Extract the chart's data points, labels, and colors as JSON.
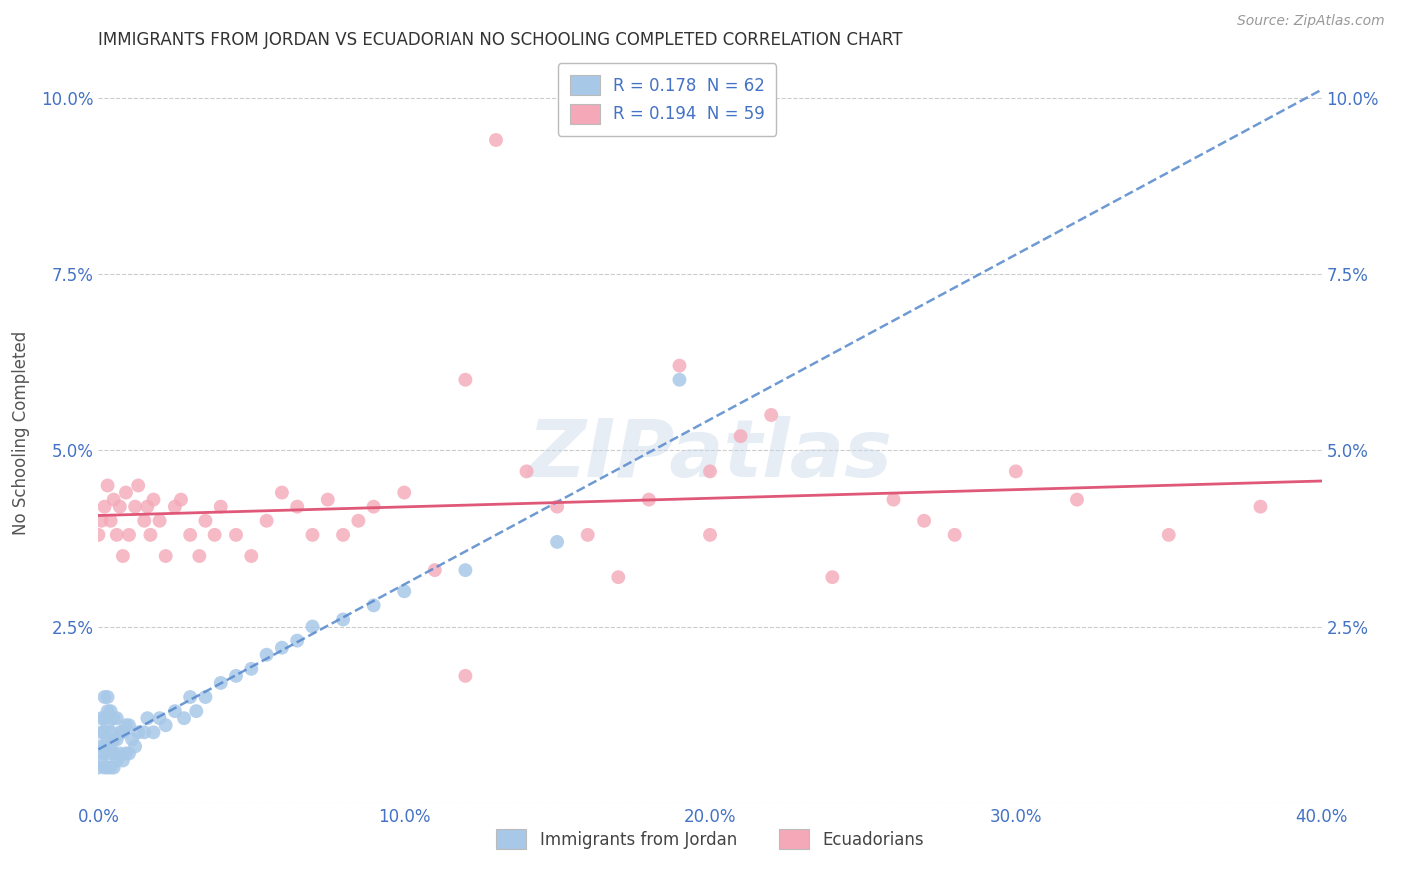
{
  "title": "IMMIGRANTS FROM JORDAN VS ECUADORIAN NO SCHOOLING COMPLETED CORRELATION CHART",
  "source": "Source: ZipAtlas.com",
  "xlabel_jordan": "Immigrants from Jordan",
  "xlabel_ecuador": "Ecuadorians",
  "ylabel": "No Schooling Completed",
  "xlim": [
    0.0,
    0.4
  ],
  "ylim": [
    0.0,
    0.105
  ],
  "xticks": [
    0.0,
    0.1,
    0.2,
    0.3,
    0.4
  ],
  "xtick_labels": [
    "0.0%",
    "10.0%",
    "20.0%",
    "30.0%",
    "40.0%"
  ],
  "yticks": [
    0.0,
    0.025,
    0.05,
    0.075,
    0.1
  ],
  "ytick_labels": [
    "",
    "2.5%",
    "5.0%",
    "7.5%",
    "10.0%"
  ],
  "legend_r1": "R = 0.178  N = 62",
  "legend_r2": "R = 0.194  N = 59",
  "jordan_color": "#a8c8e8",
  "ecuador_color": "#f4a8b8",
  "jordan_line_color": "#5588cc",
  "ecuador_line_color": "#e05878",
  "watermark_text": "ZIPatlas",
  "jordan_x": [
    0.0,
    0.0005,
    0.001,
    0.001,
    0.001,
    0.0015,
    0.002,
    0.002,
    0.002,
    0.002,
    0.002,
    0.003,
    0.003,
    0.003,
    0.003,
    0.003,
    0.003,
    0.004,
    0.004,
    0.004,
    0.004,
    0.005,
    0.005,
    0.005,
    0.005,
    0.006,
    0.006,
    0.006,
    0.007,
    0.007,
    0.008,
    0.008,
    0.009,
    0.009,
    0.01,
    0.01,
    0.011,
    0.012,
    0.013,
    0.015,
    0.016,
    0.018,
    0.02,
    0.022,
    0.025,
    0.028,
    0.03,
    0.032,
    0.035,
    0.04,
    0.045,
    0.05,
    0.055,
    0.06,
    0.065,
    0.07,
    0.08,
    0.09,
    0.1,
    0.12,
    0.15,
    0.19
  ],
  "jordan_y": [
    0.005,
    0.008,
    0.006,
    0.01,
    0.012,
    0.007,
    0.005,
    0.008,
    0.01,
    0.012,
    0.015,
    0.005,
    0.007,
    0.009,
    0.011,
    0.013,
    0.015,
    0.005,
    0.008,
    0.01,
    0.013,
    0.005,
    0.007,
    0.009,
    0.012,
    0.006,
    0.009,
    0.012,
    0.007,
    0.01,
    0.006,
    0.01,
    0.007,
    0.011,
    0.007,
    0.011,
    0.009,
    0.008,
    0.01,
    0.01,
    0.012,
    0.01,
    0.012,
    0.011,
    0.013,
    0.012,
    0.015,
    0.013,
    0.015,
    0.017,
    0.018,
    0.019,
    0.021,
    0.022,
    0.023,
    0.025,
    0.026,
    0.028,
    0.03,
    0.033,
    0.037,
    0.06
  ],
  "ecuador_x": [
    0.0,
    0.001,
    0.002,
    0.003,
    0.004,
    0.005,
    0.006,
    0.007,
    0.008,
    0.009,
    0.01,
    0.012,
    0.013,
    0.015,
    0.016,
    0.017,
    0.018,
    0.02,
    0.022,
    0.025,
    0.027,
    0.03,
    0.033,
    0.035,
    0.038,
    0.04,
    0.045,
    0.05,
    0.055,
    0.06,
    0.065,
    0.07,
    0.075,
    0.08,
    0.085,
    0.09,
    0.1,
    0.11,
    0.12,
    0.13,
    0.14,
    0.15,
    0.16,
    0.17,
    0.18,
    0.19,
    0.2,
    0.21,
    0.22,
    0.24,
    0.26,
    0.28,
    0.3,
    0.32,
    0.35,
    0.38,
    0.12,
    0.2,
    0.27
  ],
  "ecuador_y": [
    0.038,
    0.04,
    0.042,
    0.045,
    0.04,
    0.043,
    0.038,
    0.042,
    0.035,
    0.044,
    0.038,
    0.042,
    0.045,
    0.04,
    0.042,
    0.038,
    0.043,
    0.04,
    0.035,
    0.042,
    0.043,
    0.038,
    0.035,
    0.04,
    0.038,
    0.042,
    0.038,
    0.035,
    0.04,
    0.044,
    0.042,
    0.038,
    0.043,
    0.038,
    0.04,
    0.042,
    0.044,
    0.033,
    0.06,
    0.094,
    0.047,
    0.042,
    0.038,
    0.032,
    0.043,
    0.062,
    0.047,
    0.052,
    0.055,
    0.032,
    0.043,
    0.038,
    0.047,
    0.043,
    0.038,
    0.042,
    0.018,
    0.038,
    0.04
  ],
  "background_color": "#ffffff",
  "grid_color": "#cccccc",
  "axis_color": "#4472c4",
  "tick_color": "#4472c4",
  "title_color": "#333333",
  "ylabel_color": "#555555"
}
